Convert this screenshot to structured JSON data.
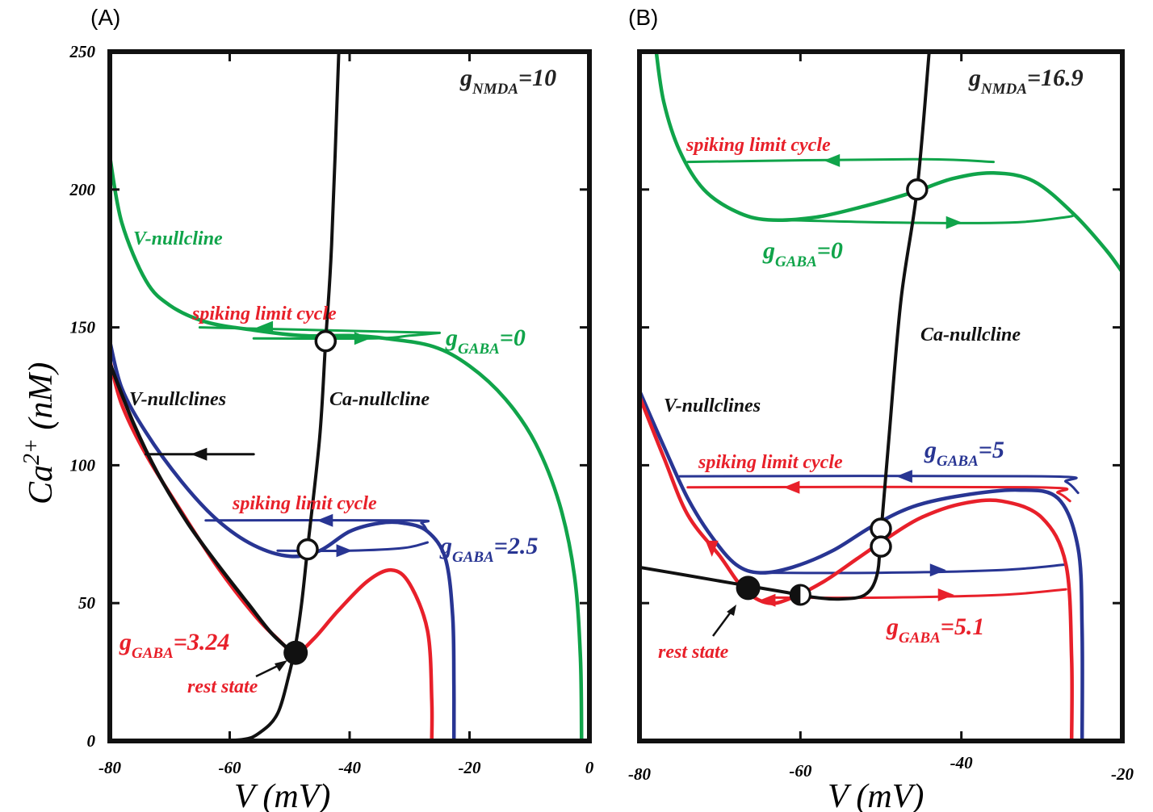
{
  "colors": {
    "green": "#10a44a",
    "red": "#e8202a",
    "blue": "#283593",
    "black": "#111111"
  },
  "chart_data": [
    {
      "panel": "(A)",
      "type": "line",
      "xlim": [
        -80,
        0
      ],
      "ylim": [
        0,
        250
      ],
      "xticks": [
        "-80",
        "-60",
        "-40",
        "-20",
        "0"
      ],
      "yticks": [
        "0",
        "50",
        "100",
        "150",
        "200",
        "250"
      ],
      "xlabel": "V (mV)",
      "ylabel": "Ca2+ (nM)",
      "corner_label": {
        "g": "g",
        "sub": "NMDA",
        "rest": "=10"
      },
      "annotations": {
        "v_nullcline": "V-nullcline",
        "v_nullclines": "V-nullclines",
        "ca_nullcline": "Ca-nullcline",
        "spiking_1": "spiking limit cycle",
        "spiking_2": "spiking limit cycle",
        "rest_state": "rest state",
        "g0": {
          "g": "g",
          "sub": "GABA",
          "rest": "=0"
        },
        "g25": {
          "g": "g",
          "sub": "GABA",
          "rest": "=2.5"
        },
        "g324": {
          "g": "g",
          "sub": "GABA",
          "rest": "=3.24"
        }
      },
      "series": [
        {
          "color": "green",
          "width": 4.5,
          "points": [
            [
              -80,
              212
            ],
            [
              -78,
              188
            ],
            [
              -74,
              167
            ],
            [
              -70,
              158
            ],
            [
              -64,
              152
            ],
            [
              -56,
              149
            ],
            [
              -48,
              147
            ],
            [
              -40,
              147
            ],
            [
              -34,
              146
            ],
            [
              -26,
              143
            ],
            [
              -20,
              136
            ],
            [
              -14,
              124
            ],
            [
              -9,
              108
            ],
            [
              -5,
              86
            ],
            [
              -2.5,
              60
            ],
            [
              -1.5,
              30
            ],
            [
              -1.3,
              0
            ]
          ]
        },
        {
          "color": "green",
          "width": 3,
          "points": [
            [
              -65,
              150
            ],
            [
              -25,
              148
            ]
          ]
        },
        {
          "color": "green",
          "width": 3,
          "points": [
            [
              -56,
              146
            ],
            [
              -36,
              146
            ],
            [
              -30,
              147
            ],
            [
              -25,
              148
            ]
          ]
        },
        {
          "color": "blue",
          "width": 4.5,
          "points": [
            [
              -80,
              145
            ],
            [
              -78,
              128
            ],
            [
              -74,
              112
            ],
            [
              -68,
              94
            ],
            [
              -62,
              80
            ],
            [
              -56,
              71
            ],
            [
              -50,
              67
            ],
            [
              -45,
              69
            ],
            [
              -40,
              76
            ],
            [
              -35,
              79
            ],
            [
              -31,
              79
            ],
            [
              -27,
              76
            ],
            [
              -24,
              66
            ],
            [
              -22.8,
              45
            ],
            [
              -22.6,
              20
            ],
            [
              -22.6,
              0
            ]
          ]
        },
        {
          "color": "blue",
          "width": 3,
          "points": [
            [
              -64,
              80
            ],
            [
              -30,
              80
            ],
            [
              -28,
              79
            ],
            [
              -27,
              76
            ]
          ]
        },
        {
          "color": "blue",
          "width": 3,
          "points": [
            [
              -52,
              69
            ],
            [
              -40,
              69
            ],
            [
              -31,
              70
            ],
            [
              -27,
              72
            ]
          ]
        },
        {
          "color": "red",
          "width": 4.5,
          "points": [
            [
              -80,
              138
            ],
            [
              -78,
              122
            ],
            [
              -74,
              104
            ],
            [
              -68,
              83
            ],
            [
              -62,
              63
            ],
            [
              -56,
              46
            ],
            [
              -52,
              37
            ],
            [
              -49,
              32
            ],
            [
              -46,
              37
            ],
            [
              -42,
              47
            ],
            [
              -37,
              58
            ],
            [
              -33,
              62
            ],
            [
              -30,
              57
            ],
            [
              -27,
              40
            ],
            [
              -26.3,
              15
            ],
            [
              -26.3,
              0
            ]
          ]
        },
        {
          "color": "black",
          "width": 4.5,
          "points": [
            [
              -80,
              137
            ],
            [
              -76,
              115
            ],
            [
              -72,
              97
            ],
            [
              -67,
              79
            ],
            [
              -62,
              64
            ],
            [
              -57,
              50
            ],
            [
              -53,
              39
            ],
            [
              -49.5,
              32
            ]
          ]
        },
        {
          "color": "black",
          "width": 4,
          "points": [
            [
              -65,
              0
            ],
            [
              -58,
              0.5
            ],
            [
              -55,
              3
            ],
            [
              -52,
              10
            ],
            [
              -50,
              25
            ],
            [
              -49,
              35
            ],
            [
              -48,
              50
            ],
            [
              -47,
              70
            ],
            [
              -45,
              110
            ],
            [
              -44,
              145
            ],
            [
              -43,
              180
            ],
            [
              -41.8,
              250
            ]
          ]
        },
        {
          "color": "black",
          "width": 3,
          "points": [
            [
              -74,
              104
            ],
            [
              -56,
              104
            ]
          ]
        }
      ],
      "arrows": [
        {
          "color": "green",
          "at": [
            -54,
            150
          ],
          "dir": "left"
        },
        {
          "color": "green",
          "at": [
            -38,
            146
          ],
          "dir": "right"
        },
        {
          "color": "blue",
          "at": [
            -44,
            80
          ],
          "dir": "left"
        },
        {
          "color": "blue",
          "at": [
            -41,
            69
          ],
          "dir": "right"
        },
        {
          "color": "black",
          "at": [
            -65,
            104
          ],
          "dir": "left"
        }
      ],
      "markers": [
        {
          "at": [
            -44,
            145
          ],
          "type": "open"
        },
        {
          "at": [
            -47,
            69.5
          ],
          "type": "open"
        },
        {
          "at": [
            -49,
            32
          ],
          "type": "filled"
        }
      ]
    },
    {
      "panel": "(B)",
      "type": "line",
      "xlim": [
        -80,
        -20
      ],
      "ylim": [
        0,
        250
      ],
      "xticks": [
        "-80",
        "-60",
        "-40",
        "-20"
      ],
      "yticks": [],
      "xlabel": "V (mV)",
      "ylabel": "",
      "corner_label": {
        "g": "g",
        "sub": "NMDA",
        "rest": "=16.9"
      },
      "annotations": {
        "spiking_1": "spiking limit cycle",
        "spiking_2": "spiking limit cycle",
        "ca_nullcline": "Ca-nullcline",
        "v_nullclines": "V-nullclines",
        "rest_state": "rest state",
        "g0": {
          "g": "g",
          "sub": "GABA",
          "rest": "=0"
        },
        "g5": {
          "g": "g",
          "sub": "GABA",
          "rest": "=5"
        },
        "g51": {
          "g": "g",
          "sub": "GABA",
          "rest": "=5.1"
        }
      },
      "series": [
        {
          "color": "green",
          "width": 4.5,
          "points": [
            [
              -78,
              252
            ],
            [
              -77,
              232
            ],
            [
              -75,
              214
            ],
            [
              -72,
              200
            ],
            [
              -68,
              192
            ],
            [
              -64,
              189
            ],
            [
              -58,
              190
            ],
            [
              -52,
              194
            ],
            [
              -46,
              199
            ],
            [
              -41,
              204
            ],
            [
              -36,
              206
            ],
            [
              -31,
              203
            ],
            [
              -26,
              191
            ],
            [
              -22,
              178
            ],
            [
              -20,
              170
            ]
          ]
        },
        {
          "color": "green",
          "width": 3,
          "points": [
            [
              -74,
              210
            ],
            [
              -46,
              211
            ],
            [
              -36,
              210
            ]
          ]
        },
        {
          "color": "green",
          "width": 3,
          "points": [
            [
              -63,
              189
            ],
            [
              -48,
              188
            ],
            [
              -34,
              188
            ],
            [
              -27,
              190
            ],
            [
              -26,
              191
            ]
          ]
        },
        {
          "color": "blue",
          "width": 4.5,
          "points": [
            [
              -80,
              127
            ],
            [
              -77,
              107
            ],
            [
              -74,
              88
            ],
            [
              -71,
              74
            ],
            [
              -68,
              64
            ],
            [
              -65,
              61
            ],
            [
              -61,
              63
            ],
            [
              -56,
              69
            ],
            [
              -51,
              78
            ],
            [
              -46,
              85
            ],
            [
              -40,
              89
            ],
            [
              -33,
              91
            ],
            [
              -28,
              88
            ],
            [
              -25.5,
              70
            ],
            [
              -25,
              40
            ],
            [
              -25,
              0
            ]
          ]
        },
        {
          "color": "blue",
          "width": 3,
          "points": [
            [
              -75,
              96
            ],
            [
              -30,
              96
            ],
            [
              -27,
              94
            ],
            [
              -25.5,
              90
            ]
          ]
        },
        {
          "color": "blue",
          "width": 3,
          "points": [
            [
              -64,
              61
            ],
            [
              -50,
              61
            ],
            [
              -35,
              62
            ],
            [
              -27,
              64
            ]
          ]
        },
        {
          "color": "red",
          "width": 4.5,
          "points": [
            [
              -80,
              125
            ],
            [
              -77,
              103
            ],
            [
              -74,
              82
            ],
            [
              -70,
              67
            ],
            [
              -67,
              55
            ],
            [
              -64,
              50
            ],
            [
              -61,
              52
            ],
            [
              -57,
              58
            ],
            [
              -53,
              66
            ],
            [
              -49,
              74
            ],
            [
              -45,
              81
            ],
            [
              -40,
              86
            ],
            [
              -35,
              87
            ],
            [
              -30,
              81
            ],
            [
              -27,
              64
            ],
            [
              -26.3,
              30
            ],
            [
              -26.3,
              0
            ]
          ]
        },
        {
          "color": "red",
          "width": 3,
          "points": [
            [
              -74,
              92
            ],
            [
              -31,
              92
            ],
            [
              -28,
              90
            ],
            [
              -26.5,
              87
            ]
          ]
        },
        {
          "color": "red",
          "width": 3,
          "points": [
            [
              -63,
              52
            ],
            [
              -50,
              52
            ],
            [
              -35,
              53
            ],
            [
              -27,
              55
            ]
          ]
        },
        {
          "color": "black",
          "width": 4,
          "points": [
            [
              -80,
              63
            ],
            [
              -74,
              60
            ],
            [
              -68,
              57
            ],
            [
              -62,
              54
            ],
            [
              -58,
              52
            ],
            [
              -55,
              51.5
            ],
            [
              -52,
              53
            ],
            [
              -50.5,
              60
            ],
            [
              -50,
              75
            ],
            [
              -49,
              110
            ],
            [
              -47.5,
              160
            ],
            [
              -45.5,
              200
            ],
            [
              -44,
              250
            ]
          ]
        }
      ],
      "arrows": [
        {
          "color": "green",
          "at": [
            -56,
            210.5
          ],
          "dir": "left"
        },
        {
          "color": "green",
          "at": [
            -41,
            188
          ],
          "dir": "right"
        },
        {
          "color": "blue",
          "at": [
            -47,
            96
          ],
          "dir": "left"
        },
        {
          "color": "blue",
          "at": [
            -43,
            62
          ],
          "dir": "right"
        },
        {
          "color": "red",
          "at": [
            -61,
            92
          ],
          "dir": "left"
        },
        {
          "color": "red",
          "at": [
            -42,
            53
          ],
          "dir": "right"
        },
        {
          "color": "red",
          "at": [
            -71,
            70
          ],
          "dir": "down"
        },
        {
          "color": "red",
          "at": [
            -64,
            51
          ],
          "dir": "left"
        }
      ],
      "markers": [
        {
          "at": [
            -45.5,
            200
          ],
          "type": "open"
        },
        {
          "at": [
            -50,
            77
          ],
          "type": "open"
        },
        {
          "at": [
            -50,
            70.5
          ],
          "type": "open"
        },
        {
          "at": [
            -66.5,
            55.5
          ],
          "type": "filled"
        },
        {
          "at": [
            -60,
            53
          ],
          "type": "half"
        }
      ]
    }
  ]
}
